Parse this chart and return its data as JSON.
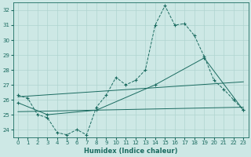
{
  "bg_color": "#cde8e5",
  "grid_color": "#b0d4d0",
  "line_color": "#1a6b60",
  "xlabel": "Humidex (Indice chaleur)",
  "xlim": [
    -0.5,
    23.5
  ],
  "ylim": [
    23.5,
    32.5
  ],
  "yticks": [
    24,
    25,
    26,
    27,
    28,
    29,
    30,
    31,
    32
  ],
  "xticks": [
    0,
    1,
    2,
    3,
    4,
    5,
    6,
    7,
    8,
    9,
    10,
    11,
    12,
    13,
    14,
    15,
    16,
    17,
    18,
    19,
    20,
    21,
    22,
    23
  ],
  "series1_x": [
    0,
    1,
    2,
    3,
    4,
    5,
    6,
    7,
    8,
    9,
    10,
    11,
    12,
    13,
    14,
    15,
    16,
    17,
    18,
    19,
    20,
    21,
    22,
    23
  ],
  "series1_y": [
    26.3,
    26.1,
    25.0,
    24.8,
    23.8,
    23.65,
    24.0,
    23.65,
    25.5,
    26.3,
    27.5,
    27.0,
    27.3,
    28.0,
    31.0,
    32.3,
    31.0,
    31.1,
    30.3,
    28.9,
    27.3,
    26.7,
    26.0,
    25.3
  ],
  "series2_x": [
    0,
    23
  ],
  "series2_y": [
    26.2,
    27.2
  ],
  "series3_x": [
    0,
    23
  ],
  "series3_y": [
    25.2,
    25.5
  ],
  "series4_x": [
    0,
    3,
    8,
    14,
    19,
    23
  ],
  "series4_y": [
    25.8,
    25.0,
    25.3,
    27.0,
    28.8,
    25.3
  ]
}
